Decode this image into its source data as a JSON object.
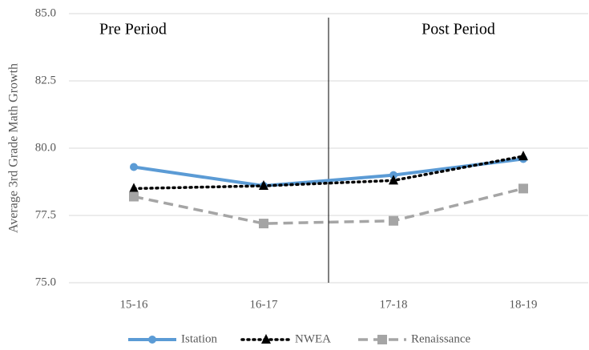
{
  "chart_data": {
    "type": "line",
    "y_label": "Average 3rd Grade Math Growth",
    "annotations": [
      "Pre Period",
      "Post Period"
    ],
    "categories": [
      "15-16",
      "16-17",
      "17-18",
      "18-19"
    ],
    "series": [
      {
        "name": "Istation",
        "color": "#5b9bd5",
        "dash": "solid",
        "marker": "circle",
        "values": [
          79.3,
          78.6,
          79.0,
          79.6
        ]
      },
      {
        "name": "NWEA",
        "color": "#000000",
        "dash": "dotted",
        "marker": "triangle",
        "values": [
          78.5,
          78.6,
          78.8,
          79.7
        ]
      },
      {
        "name": "Renaissance",
        "color": "#a5a5a5",
        "dash": "dashed",
        "marker": "square",
        "values": [
          78.2,
          77.2,
          77.3,
          78.5
        ]
      }
    ],
    "ylim": [
      75,
      85
    ],
    "yticks": [
      {
        "value": 75,
        "label": "75.0"
      },
      {
        "value": 77.5,
        "label": "77.5"
      },
      {
        "value": 80,
        "label": "80.0"
      },
      {
        "value": 82.5,
        "label": "82.5"
      },
      {
        "value": 85,
        "label": "85.0"
      }
    ],
    "grid": true,
    "legend": "bottom"
  }
}
